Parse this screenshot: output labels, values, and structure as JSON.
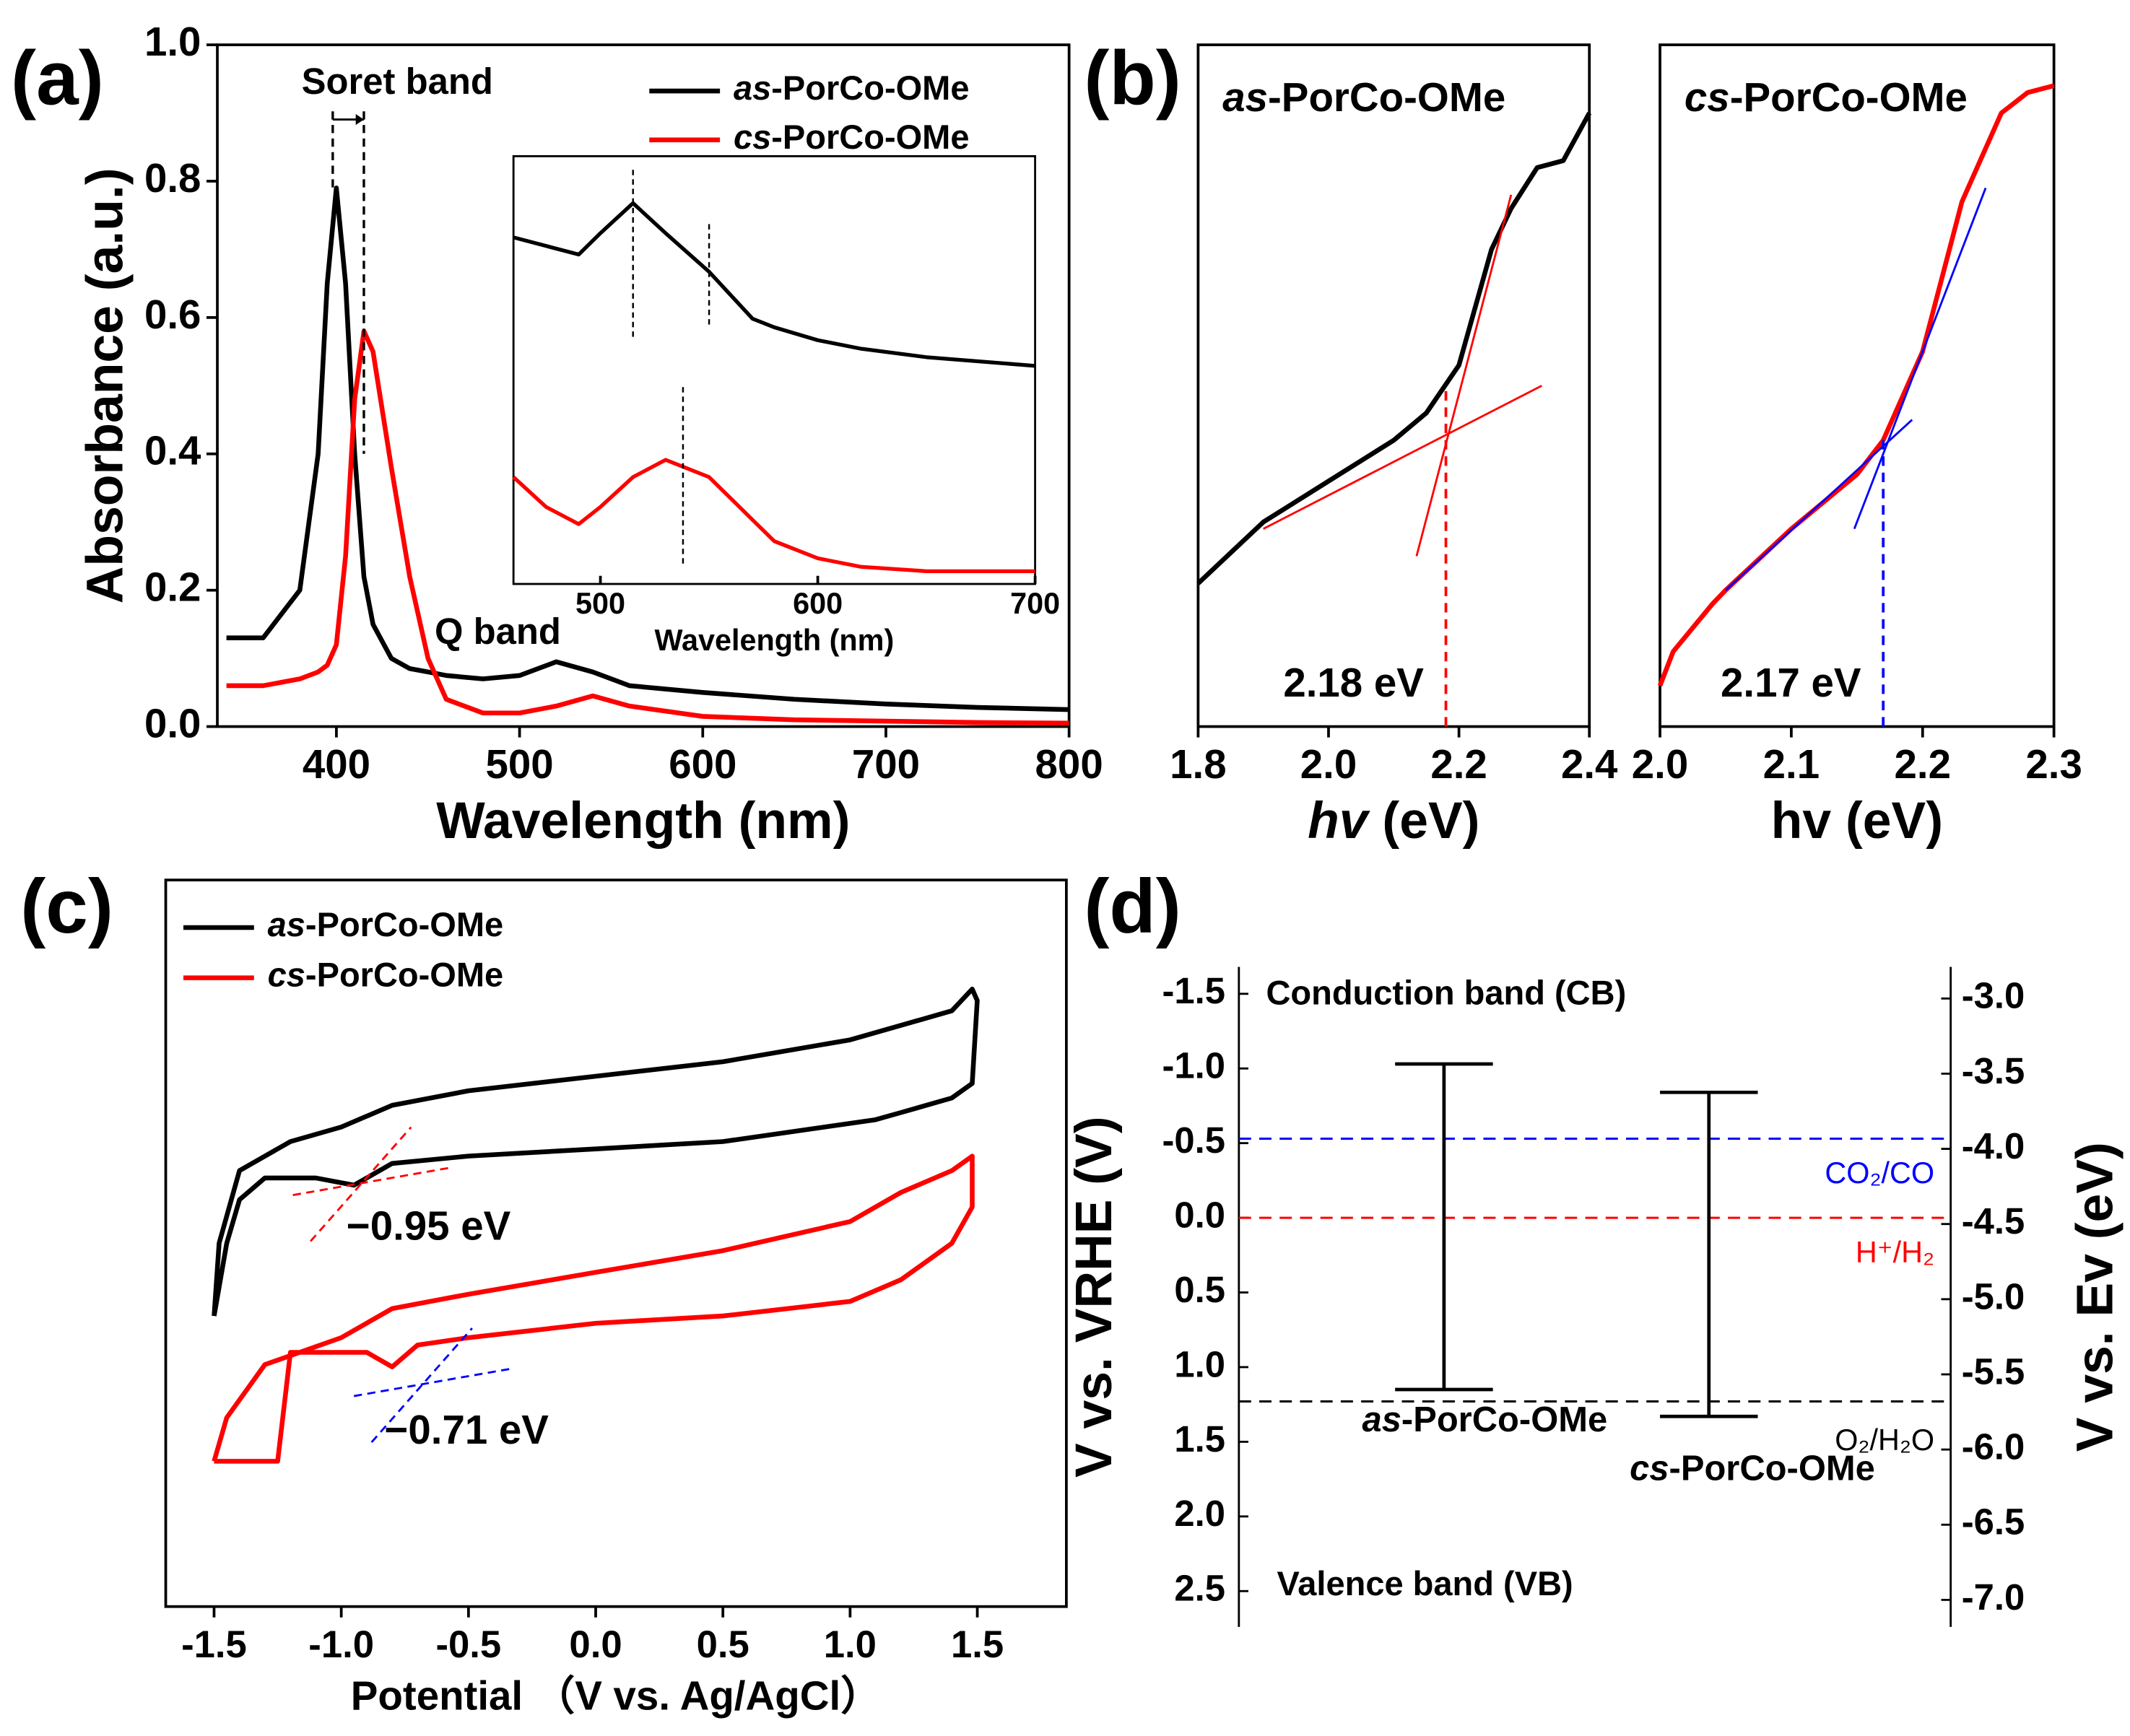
{
  "chart_data": [
    {
      "type": "line",
      "title": "(a)",
      "xlabel": "Wavelength (nm)",
      "ylabel": "Absorbance (a.u.)",
      "x": [
        340,
        360,
        380,
        390,
        395,
        400,
        405,
        410,
        415,
        420,
        430,
        440,
        450,
        460,
        480,
        500,
        520,
        540,
        560,
        600,
        650,
        700,
        750,
        800
      ],
      "series": [
        {
          "name": "as-PorCo-OMe",
          "color": "#000000",
          "values": [
            0.13,
            0.13,
            0.2,
            0.4,
            0.65,
            0.79,
            0.65,
            0.4,
            0.22,
            0.15,
            0.1,
            0.085,
            0.08,
            0.075,
            0.07,
            0.075,
            0.095,
            0.08,
            0.06,
            0.05,
            0.04,
            0.033,
            0.028,
            0.025
          ]
        },
        {
          "name": "cs-PorCo-OMe",
          "color": "#ff0000",
          "values": [
            0.06,
            0.06,
            0.07,
            0.08,
            0.09,
            0.12,
            0.25,
            0.48,
            0.58,
            0.55,
            0.38,
            0.22,
            0.1,
            0.04,
            0.02,
            0.02,
            0.03,
            0.045,
            0.03,
            0.015,
            0.01,
            0.008,
            0.006,
            0.005
          ]
        }
      ],
      "xlim": [
        335,
        800
      ],
      "xticks": [
        400,
        500,
        600,
        700,
        800
      ],
      "ylim": [
        0,
        1
      ],
      "yticks": [
        {
          "value": 0,
          "label": "0.0"
        },
        0.2,
        0.4,
        0.6,
        0.8,
        {
          "value": 1,
          "label": "1.0"
        }
      ],
      "annotations": [
        "Soret band",
        "Q band"
      ],
      "peaks": [
        398,
        415
      ]
    },
    {
      "type": "line",
      "xlabel": "Wavelength (nm)",
      "x": [
        460,
        475,
        490,
        500,
        515,
        530,
        550,
        570,
        580,
        600,
        620,
        650,
        700
      ],
      "series": [
        {
          "color": "#000000",
          "values": [
            0.81,
            0.79,
            0.77,
            0.82,
            0.89,
            0.82,
            0.73,
            0.62,
            0.6,
            0.57,
            0.55,
            0.53,
            0.51
          ]
        },
        {
          "color": "#ff0000",
          "values": [
            0.25,
            0.18,
            0.14,
            0.18,
            0.25,
            0.29,
            0.25,
            0.15,
            0.1,
            0.06,
            0.04,
            0.03,
            0.03
          ]
        }
      ],
      "xlim": [
        460,
        700
      ],
      "xticks": [
        500,
        600,
        700
      ],
      "ylim": [
        0,
        1
      ],
      "peaks": [
        515,
        550,
        538
      ]
    },
    {
      "type": "line",
      "title": "(b)",
      "subtitle": "as-PorCo-OMe",
      "xlabel": "hv (eV)",
      "x": [
        1.8,
        1.9,
        2.0,
        2.1,
        2.15,
        2.2,
        2.25,
        2.28,
        2.32,
        2.36,
        2.4
      ],
      "series": [
        {
          "color": "#000000",
          "values": [
            0.21,
            0.3,
            0.36,
            0.42,
            0.46,
            0.53,
            0.7,
            0.76,
            0.82,
            0.83,
            0.9
          ]
        }
      ],
      "fits": [
        {
          "color": "#ff0000",
          "x": [
            2.135,
            2.28
          ],
          "values": [
            0.25,
            0.78
          ]
        },
        {
          "color": "#ff0000",
          "x": [
            1.9,
            2.327
          ],
          "values": [
            0.29,
            0.5
          ]
        }
      ],
      "xlim": [
        1.8,
        2.4
      ],
      "xticks": [
        1.8,
        {
          "value": 2.0,
          "label": "2.0"
        },
        2.2,
        2.4
      ],
      "ylim": [
        0,
        1
      ],
      "onset": 2.18,
      "onset_label": "2.18 eV",
      "onset_color": "#ff0000"
    },
    {
      "type": "line",
      "subtitle": "cs-PorCo-OMe",
      "xlabel": "hv (eV)",
      "x": [
        2.0,
        2.01,
        2.04,
        2.05,
        2.1,
        2.15,
        2.17,
        2.2,
        2.23,
        2.26,
        2.28,
        2.3
      ],
      "series": [
        {
          "color": "#ff0000",
          "values": [
            0.06,
            0.11,
            0.18,
            0.2,
            0.29,
            0.37,
            0.42,
            0.55,
            0.77,
            0.9,
            0.93,
            0.94
          ]
        }
      ],
      "fits": [
        {
          "color": "#0000ff",
          "x": [
            2.05,
            2.192
          ],
          "values": [
            0.2,
            0.45
          ]
        },
        {
          "color": "#0000ff",
          "x": [
            2.148,
            2.248
          ],
          "values": [
            0.29,
            0.79
          ]
        }
      ],
      "xlim": [
        2.0,
        2.3
      ],
      "xticks": [
        {
          "value": 2.0,
          "label": "2.0"
        },
        2.1,
        2.2,
        2.3
      ],
      "ylim": [
        0,
        1
      ],
      "onset": 2.17,
      "onset_label": "2.17 eV",
      "onset_color": "#0000ff"
    },
    {
      "type": "line",
      "title": "(c)",
      "xlabel": "Potential （V vs. Ag/AgCl）",
      "series": [
        {
          "name": "as-PorCo-OMe",
          "color": "#000000",
          "x": [
            -1.5,
            -1.48,
            -1.4,
            -1.2,
            -1.0,
            -0.8,
            -0.5,
            0,
            0.5,
            1.0,
            1.2,
            1.4,
            1.48,
            1.5,
            1.48,
            1.4,
            1.2,
            1.1,
            0.5,
            0,
            -0.5,
            -0.8,
            -0.95,
            -1.1,
            -1.3,
            -1.4,
            -1.45,
            -1.5
          ],
          "values": [
            0.4,
            0.5,
            0.6,
            0.64,
            0.66,
            0.69,
            0.71,
            0.73,
            0.75,
            0.78,
            0.8,
            0.82,
            0.85,
            0.834,
            0.72,
            0.7,
            0.68,
            0.67,
            0.64,
            0.63,
            0.62,
            0.61,
            0.58,
            0.59,
            0.59,
            0.56,
            0.5,
            0.4
          ]
        },
        {
          "name": "cs-PorCo-OMe",
          "color": "#ff0000",
          "x": [
            -1.5,
            -1.45,
            -1.3,
            -1.0,
            -0.8,
            -0.5,
            0,
            0.5,
            1.0,
            1.2,
            1.4,
            1.48,
            1.48,
            1.4,
            1.2,
            1.0,
            0.5,
            0,
            -0.5,
            -0.7,
            -0.8,
            -0.9,
            -1.2,
            -1.25,
            -1.5
          ],
          "values": [
            0.2,
            0.26,
            0.333,
            0.37,
            0.41,
            0.43,
            0.46,
            0.49,
            0.53,
            0.57,
            0.6,
            0.62,
            0.55,
            0.5,
            0.45,
            0.42,
            0.4,
            0.39,
            0.37,
            0.36,
            0.33,
            0.35,
            0.35,
            0.2,
            0.2
          ]
        }
      ],
      "xlim": [
        -1.69,
        1.85
      ],
      "xticks": [
        -1.5,
        {
          "value": -1.0,
          "label": "-1.0"
        },
        -0.5,
        {
          "value": 0,
          "label": "0.0"
        },
        0.5,
        {
          "value": 1.0,
          "label": "1.0"
        },
        1.5
      ],
      "ylim": [
        0,
        1
      ],
      "onsets": [
        -0.95,
        -0.71
      ],
      "onset_labels": [
        "−0.95 eV",
        "−0.71 eV"
      ]
    },
    {
      "type": "energy",
      "title": "(d)",
      "ylabel": "V vs. VRHE (V)",
      "y2label": "V vs. Ev (eV)",
      "categories": [
        "as-PorCo-OMe",
        "cs-PorCo-OMe"
      ],
      "cb": [
        -1.03,
        -0.84
      ],
      "vb": [
        1.15,
        1.33
      ],
      "ylim": [
        -1.68,
        2.74
      ],
      "y_inverted": true,
      "yticks": [
        -1.5,
        {
          "value": -1.0,
          "label": "-1.0"
        },
        -0.5,
        {
          "value": 0,
          "label": "0.0"
        },
        0.5,
        {
          "value": 1.0,
          "label": "1.0"
        },
        1.5,
        {
          "value": 2.0,
          "label": "2.0"
        },
        2.5
      ],
      "y2lim": [
        -7.18,
        -2.79
      ],
      "y2ticks": [
        {
          "value": -3.0,
          "label": "-3.0"
        },
        -3.5,
        {
          "value": -4.0,
          "label": "-4.0"
        },
        -4.5,
        {
          "value": -5.0,
          "label": "-5.0"
        },
        -5.5,
        {
          "value": -6.0,
          "label": "-6.0"
        },
        -6.5,
        {
          "value": -7.0,
          "label": "-7.0"
        }
      ],
      "levels": [
        {
          "label": "CO₂/CO",
          "value": -0.53,
          "color": "#0000ff"
        },
        {
          "label": "H⁺/H₂",
          "value": 0,
          "color": "#ff0000"
        },
        {
          "label": "O₂/H₂O",
          "value": 1.23,
          "color": "#000000"
        }
      ],
      "annotations": [
        "Conduction band (CB)",
        "Valence band (VB)"
      ]
    }
  ]
}
